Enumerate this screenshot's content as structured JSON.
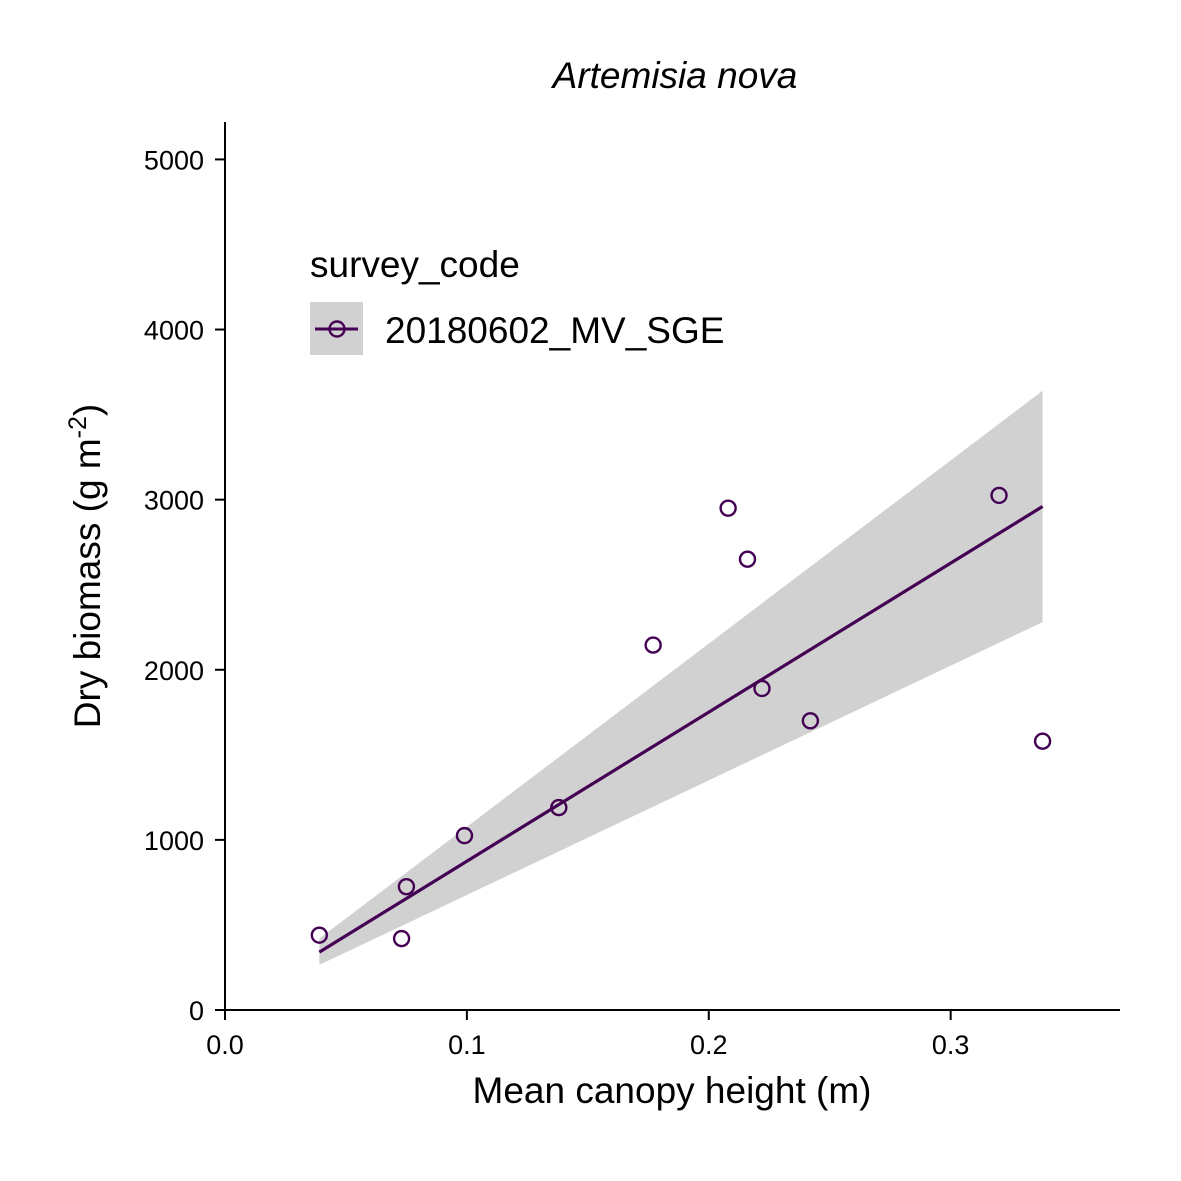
{
  "chart_data": {
    "type": "scatter",
    "title": "Artemisia nova",
    "xlabel": "Mean canopy height (m)",
    "ylabel": {
      "main": "Dry biomass (g m",
      "superscript": "-2",
      "close": ")"
    },
    "xlim": [
      0.0,
      0.37
    ],
    "ylim": [
      0,
      5220
    ],
    "x_ticks": [
      0.0,
      0.1,
      0.2,
      0.3
    ],
    "x_tick_labels": [
      "0.0",
      "0.1",
      "0.2",
      "0.3"
    ],
    "y_ticks": [
      0,
      1000,
      2000,
      3000,
      4000,
      5000
    ],
    "y_tick_labels": [
      "0",
      "1000",
      "2000",
      "3000",
      "4000",
      "5000"
    ],
    "legend": {
      "title": "survey_code",
      "placement": "top-left",
      "entries": [
        "20180602_MV_SGE"
      ]
    },
    "series": [
      {
        "name": "20180602_MV_SGE",
        "color": "#440154",
        "points": [
          {
            "x": 0.039,
            "y": 440
          },
          {
            "x": 0.073,
            "y": 420
          },
          {
            "x": 0.075,
            "y": 725
          },
          {
            "x": 0.099,
            "y": 1025
          },
          {
            "x": 0.138,
            "y": 1190
          },
          {
            "x": 0.177,
            "y": 2145
          },
          {
            "x": 0.208,
            "y": 2950
          },
          {
            "x": 0.216,
            "y": 2650
          },
          {
            "x": 0.222,
            "y": 1890
          },
          {
            "x": 0.242,
            "y": 1700
          },
          {
            "x": 0.32,
            "y": 3025
          },
          {
            "x": 0.338,
            "y": 1580
          }
        ],
        "fit": {
          "x": [
            0.039,
            0.338
          ],
          "y": [
            340,
            2960
          ],
          "ci_lower": [
            265,
            2280
          ],
          "ci_upper": [
            420,
            3640
          ]
        }
      }
    ],
    "band_color": "#d1d1d1",
    "grid": false
  }
}
